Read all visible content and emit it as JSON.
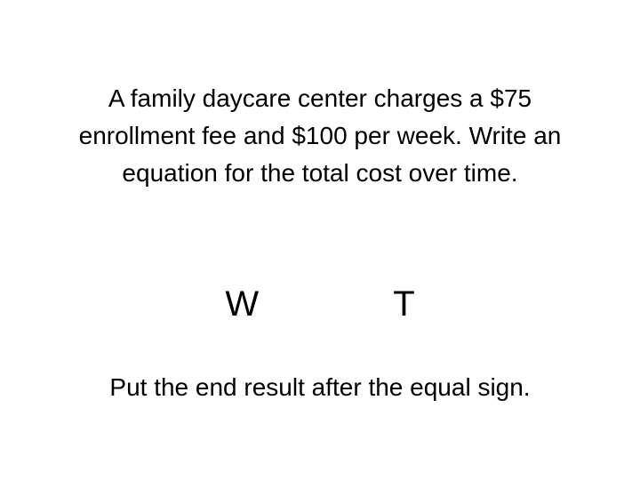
{
  "problem": {
    "line1": "A family daycare center charges a $75",
    "line2": "enrollment fee and $100 per week.  Write an",
    "line3": "equation for the total cost over time."
  },
  "variables": {
    "w": "W",
    "t": "T"
  },
  "hint": "Put the end result after the equal sign.",
  "styling": {
    "background_color": "#ffffff",
    "text_color": "#000000",
    "body_fontsize": 28,
    "variable_fontsize": 40,
    "font_family": "Arial"
  }
}
